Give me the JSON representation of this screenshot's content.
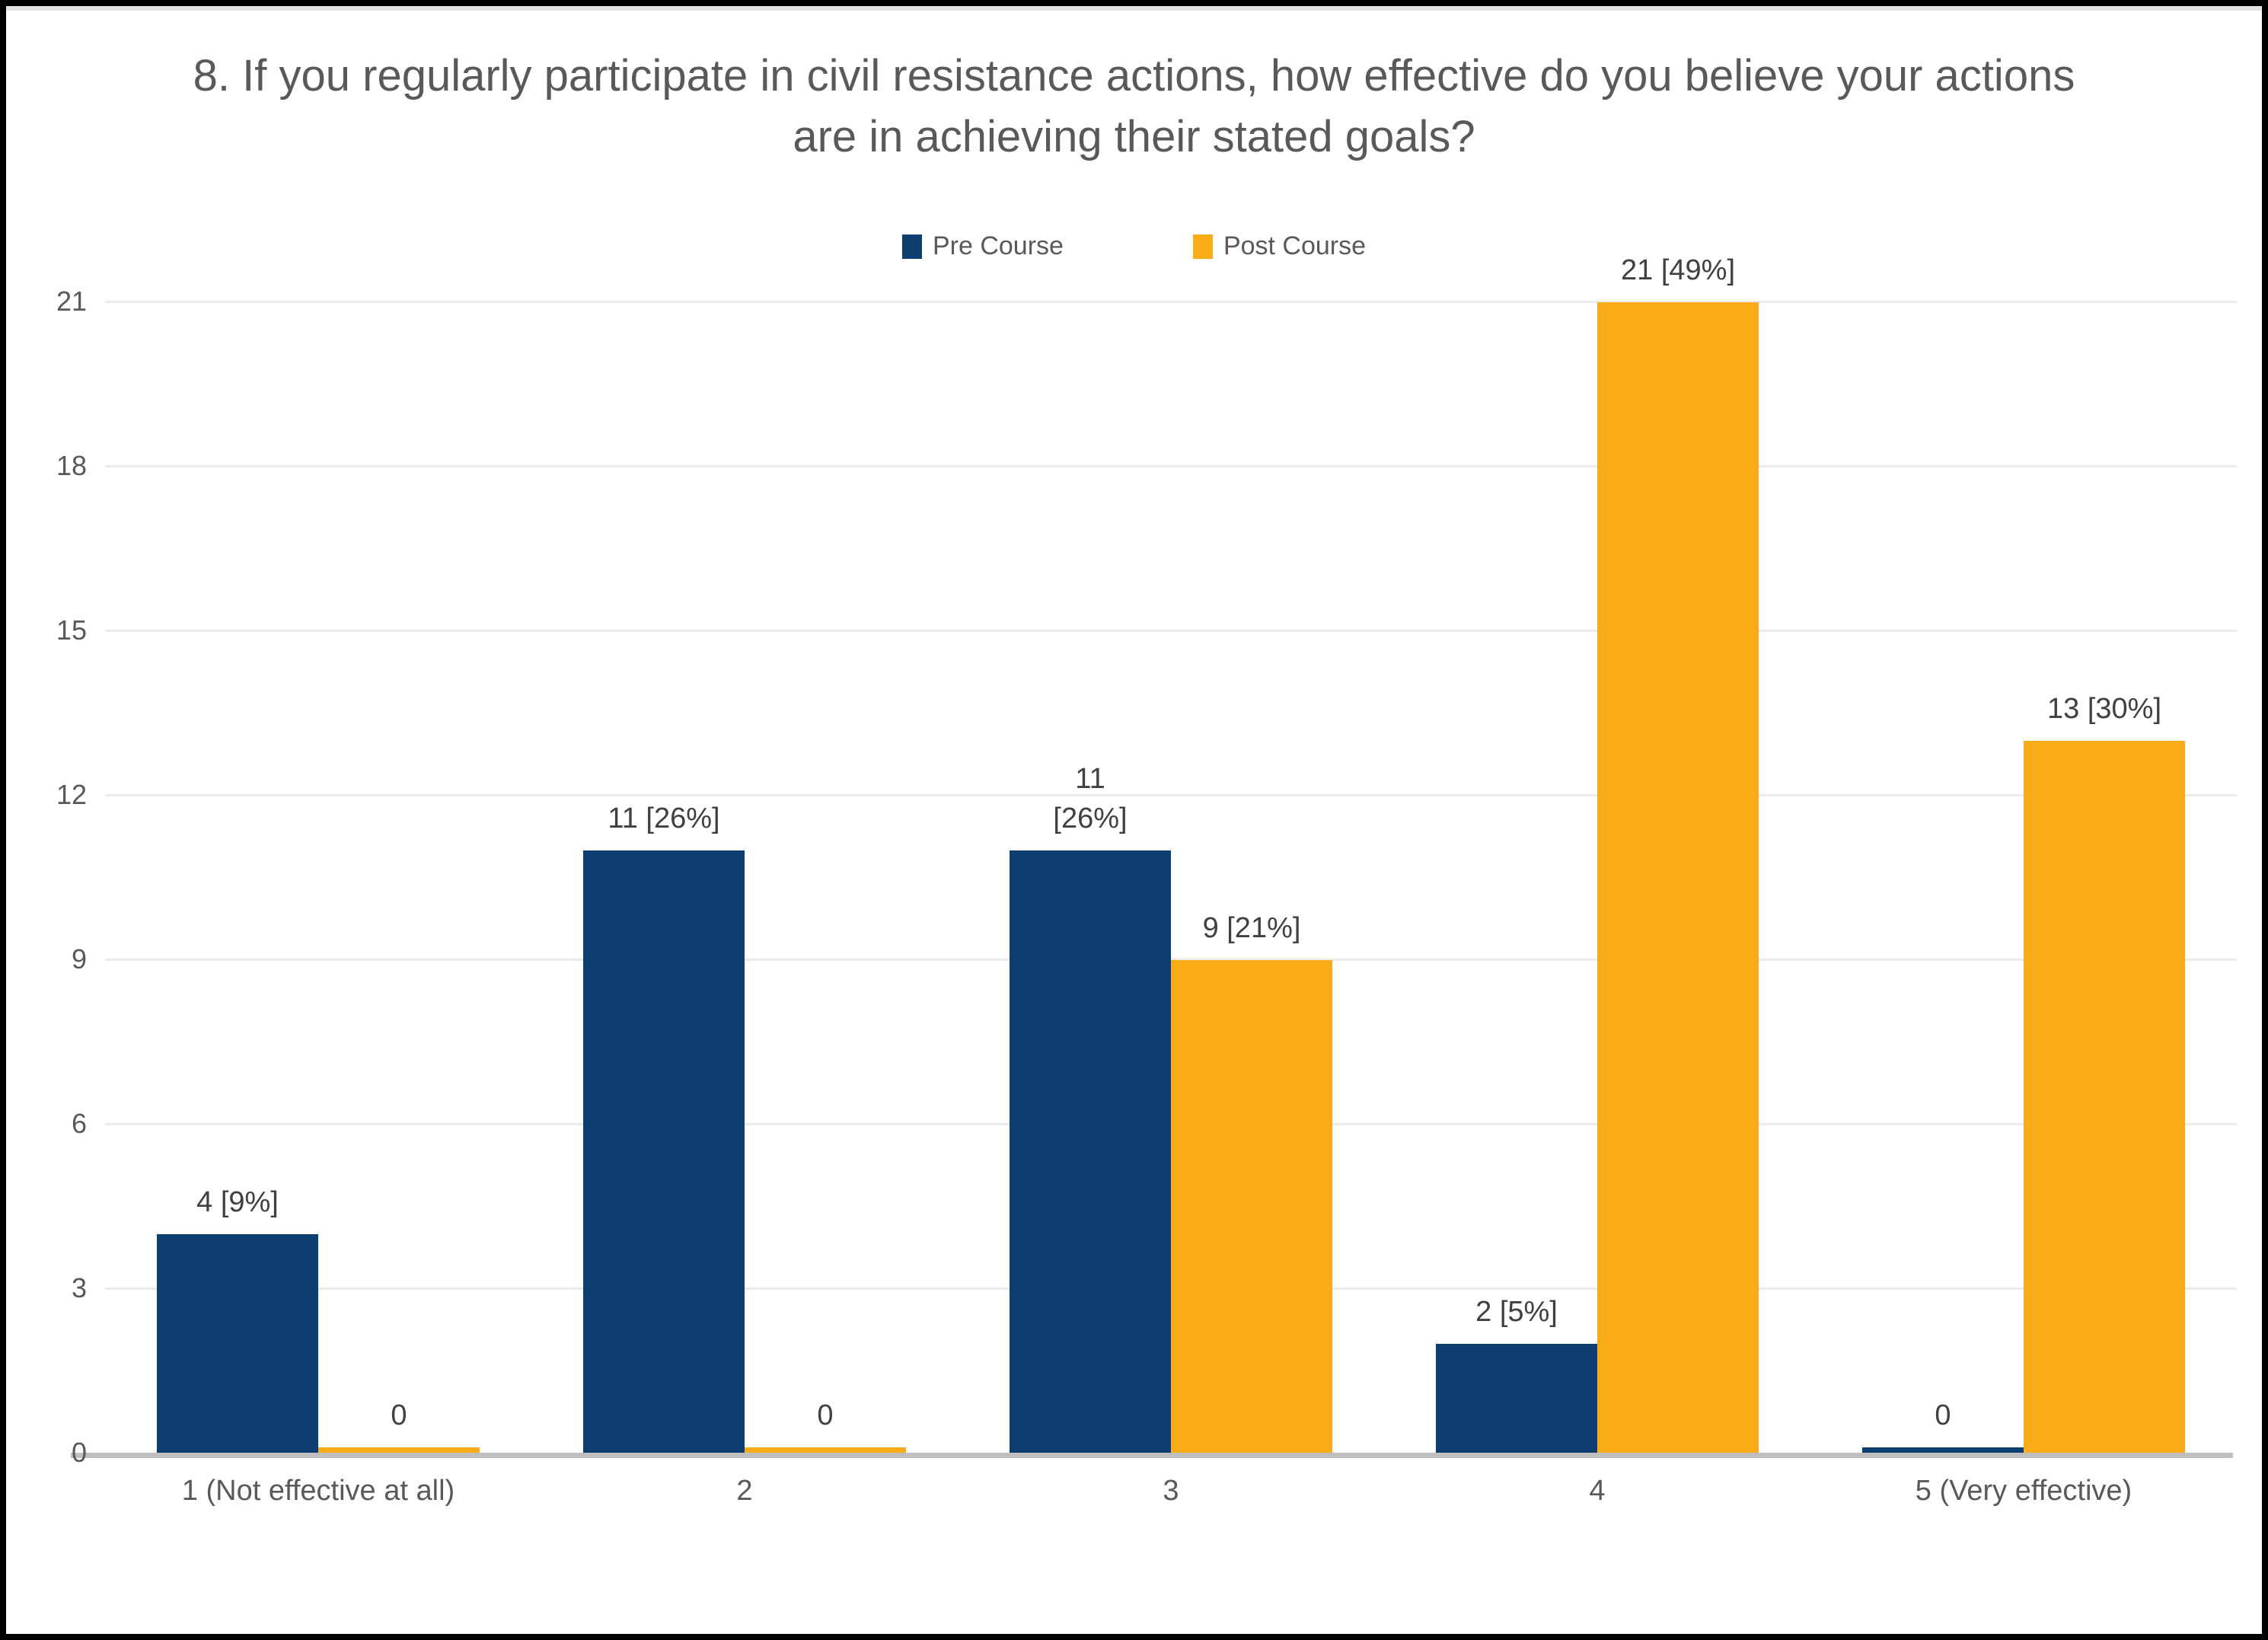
{
  "chart_data": {
    "type": "bar",
    "title": "8. If you regularly participate in civil resistance actions, how effective do you believe your actions are in achieving their stated goals?",
    "categories": [
      "1 (Not effective at all)",
      "2",
      "3",
      "4",
      "5 (Very effective)"
    ],
    "series": [
      {
        "name": "Pre Course",
        "color": "#0E3D6F",
        "values": [
          4,
          11,
          11,
          2,
          0
        ],
        "labels": [
          [
            "4 [9%]"
          ],
          [
            "11 [26%]"
          ],
          [
            "11",
            "[26%]"
          ],
          [
            "2 [5%]"
          ],
          [
            "0"
          ]
        ]
      },
      {
        "name": "Post Course",
        "color": "#FAAB18",
        "values": [
          0,
          0,
          9,
          21,
          13
        ],
        "labels": [
          [
            "0"
          ],
          [
            "0"
          ],
          [
            "9 [21%]"
          ],
          [
            "21 [49%]"
          ],
          [
            "13 [30%]"
          ]
        ]
      }
    ],
    "y_axis": {
      "min": 0,
      "max": 21,
      "ticks": [
        0,
        3,
        6,
        9,
        12,
        15,
        18,
        21
      ]
    },
    "grid": true,
    "legend_position": "top",
    "colors": {
      "title_text": "#595959",
      "axis_text": "#595959",
      "data_label_text": "#404040",
      "gridline": "#EBEBEB",
      "axis_line": "#BFBFBF",
      "frame": "#000000"
    }
  }
}
